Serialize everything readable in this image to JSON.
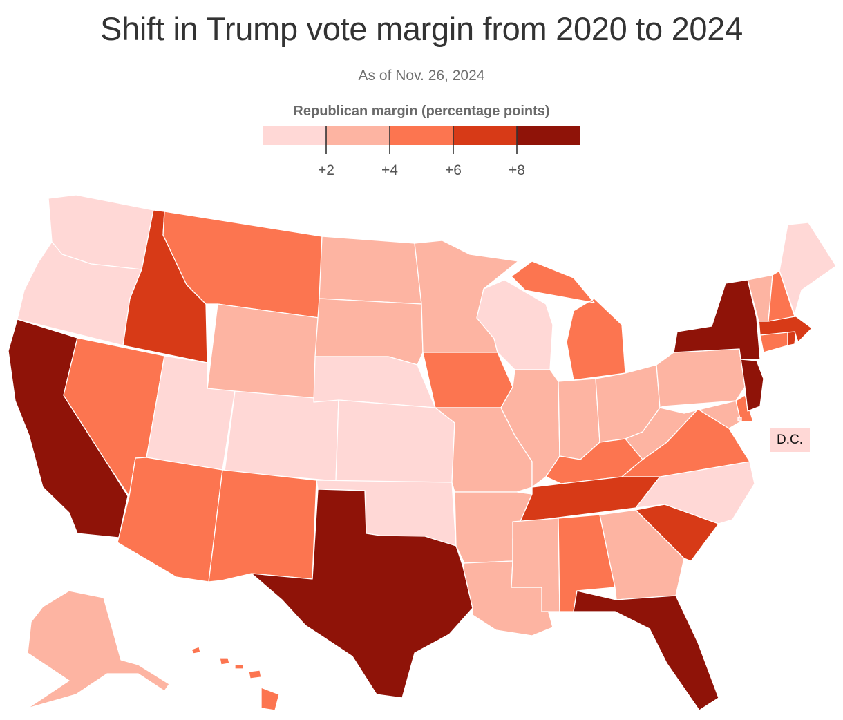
{
  "title": "Shift in Trump vote margin from 2020 to 2024",
  "subtitle": "As of Nov. 26, 2024",
  "legend": {
    "title": "Republican margin (percentage points)",
    "bins": [
      {
        "range": "0–2",
        "color": "#ffd8d6"
      },
      {
        "range": "2–4",
        "color": "#fdb4a2"
      },
      {
        "range": "4–6",
        "color": "#fc7550"
      },
      {
        "range": "6–8",
        "color": "#d73a17"
      },
      {
        "range": "8+",
        "color": "#8f1308"
      }
    ],
    "tick_labels": [
      "+2",
      "+4",
      "+6",
      "+8"
    ]
  },
  "dc_label": "D.C.",
  "states": [
    {
      "abbr": "WA",
      "bin": 0
    },
    {
      "abbr": "OR",
      "bin": 0
    },
    {
      "abbr": "CA",
      "bin": 4
    },
    {
      "abbr": "ID",
      "bin": 3
    },
    {
      "abbr": "NV",
      "bin": 2
    },
    {
      "abbr": "MT",
      "bin": 2
    },
    {
      "abbr": "WY",
      "bin": 1
    },
    {
      "abbr": "UT",
      "bin": 0
    },
    {
      "abbr": "AZ",
      "bin": 2
    },
    {
      "abbr": "CO",
      "bin": 0
    },
    {
      "abbr": "NM",
      "bin": 2
    },
    {
      "abbr": "ND",
      "bin": 1
    },
    {
      "abbr": "SD",
      "bin": 1
    },
    {
      "abbr": "NE",
      "bin": 0
    },
    {
      "abbr": "KS",
      "bin": 0
    },
    {
      "abbr": "OK",
      "bin": 0
    },
    {
      "abbr": "TX",
      "bin": 4
    },
    {
      "abbr": "MN",
      "bin": 1
    },
    {
      "abbr": "IA",
      "bin": 2
    },
    {
      "abbr": "MO",
      "bin": 1
    },
    {
      "abbr": "AR",
      "bin": 1
    },
    {
      "abbr": "LA",
      "bin": 1
    },
    {
      "abbr": "WI",
      "bin": 0
    },
    {
      "abbr": "IL",
      "bin": 1
    },
    {
      "abbr": "MI",
      "bin": 2
    },
    {
      "abbr": "IN",
      "bin": 1
    },
    {
      "abbr": "OH",
      "bin": 1
    },
    {
      "abbr": "KY",
      "bin": 2
    },
    {
      "abbr": "TN",
      "bin": 3
    },
    {
      "abbr": "MS",
      "bin": 1
    },
    {
      "abbr": "AL",
      "bin": 2
    },
    {
      "abbr": "GA",
      "bin": 1
    },
    {
      "abbr": "FL",
      "bin": 4
    },
    {
      "abbr": "SC",
      "bin": 3
    },
    {
      "abbr": "NC",
      "bin": 0
    },
    {
      "abbr": "VA",
      "bin": 2
    },
    {
      "abbr": "WV",
      "bin": 1
    },
    {
      "abbr": "PA",
      "bin": 1
    },
    {
      "abbr": "NY",
      "bin": 4
    },
    {
      "abbr": "NJ",
      "bin": 4
    },
    {
      "abbr": "DE",
      "bin": 2
    },
    {
      "abbr": "MD",
      "bin": 1
    },
    {
      "abbr": "CT",
      "bin": 2
    },
    {
      "abbr": "RI",
      "bin": 3
    },
    {
      "abbr": "MA",
      "bin": 3
    },
    {
      "abbr": "VT",
      "bin": 1
    },
    {
      "abbr": "NH",
      "bin": 2
    },
    {
      "abbr": "ME",
      "bin": 0
    },
    {
      "abbr": "AK",
      "bin": 1
    },
    {
      "abbr": "HI",
      "bin": 2
    },
    {
      "abbr": "DC",
      "bin": 0
    }
  ]
}
